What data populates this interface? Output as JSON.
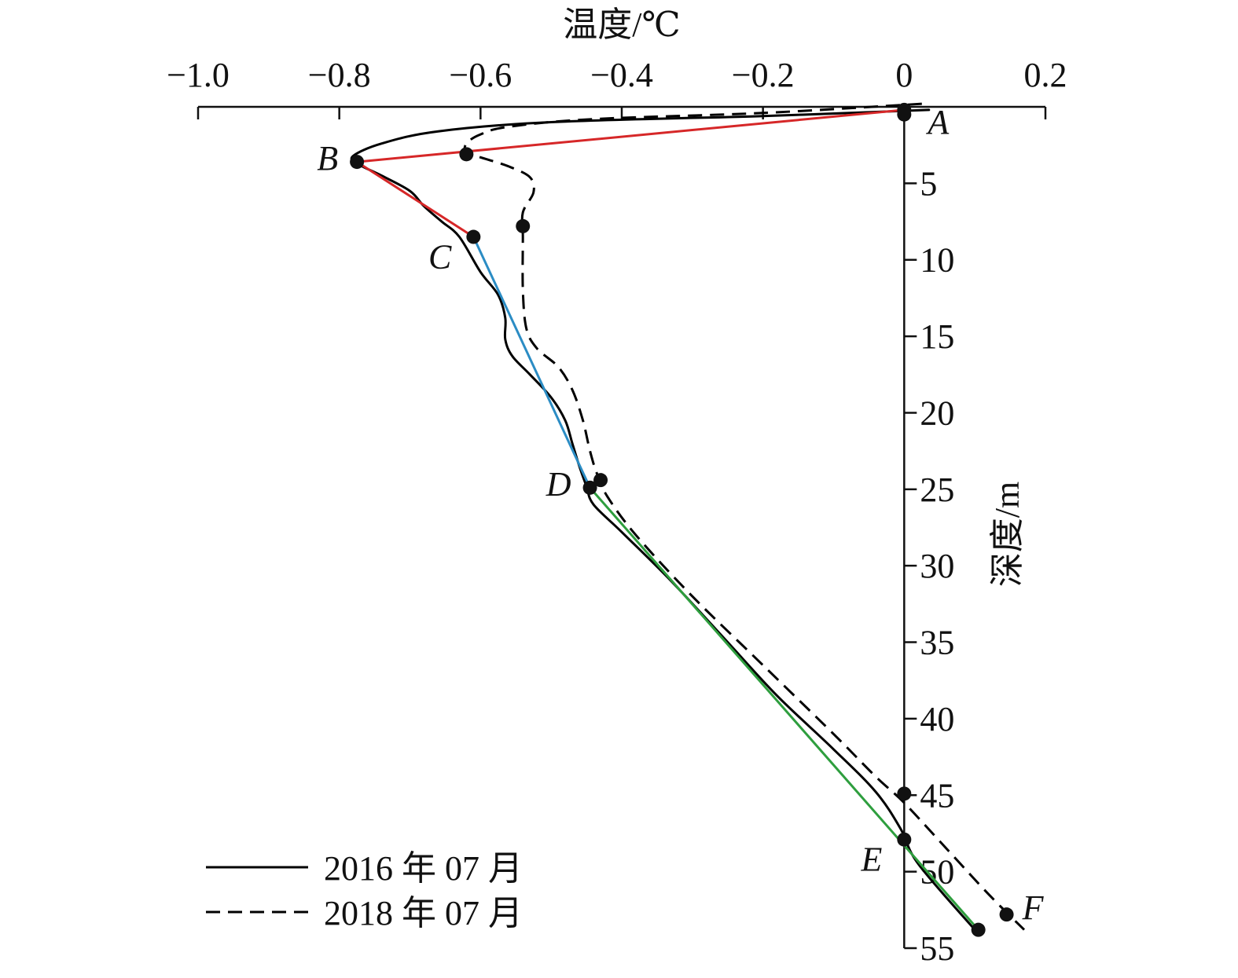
{
  "chart_data": {
    "type": "line",
    "xlabel": "温度/℃",
    "ylabel": "深度/m",
    "xlim": [
      -1.0,
      0.2
    ],
    "ylim": [
      0,
      55
    ],
    "x_axis_position": "top",
    "y_axis_at_x": 0,
    "y_inverted": true,
    "grid": false,
    "legend_placement": "bottom-left",
    "x_ticks": [
      -1.0,
      -0.8,
      -0.6,
      -0.4,
      -0.2,
      0,
      0.2
    ],
    "x_tick_labels": [
      "−1.0",
      "−0.8",
      "−0.6",
      "−0.4",
      "−0.2",
      "0",
      "0.2"
    ],
    "y_ticks": [
      5,
      10,
      15,
      20,
      25,
      30,
      35,
      40,
      45,
      50,
      55
    ],
    "y_tick_labels": [
      "5",
      "10",
      "15",
      "20",
      "25",
      "30",
      "35",
      "40",
      "45",
      "50",
      "55"
    ],
    "series": [
      {
        "name": "2016 年 07 月",
        "style": "solid",
        "color": "#000000",
        "points": [
          [
            0.035,
            0.2
          ],
          [
            -0.2,
            0.6
          ],
          [
            -0.5,
            1.0
          ],
          [
            -0.66,
            1.6
          ],
          [
            -0.74,
            2.4
          ],
          [
            -0.78,
            3.2
          ],
          [
            -0.775,
            3.7
          ],
          [
            -0.74,
            4.5
          ],
          [
            -0.7,
            5.5
          ],
          [
            -0.68,
            6.5
          ],
          [
            -0.655,
            7.5
          ],
          [
            -0.63,
            8.5
          ],
          [
            -0.6,
            10.8
          ],
          [
            -0.575,
            12.3
          ],
          [
            -0.565,
            13.8
          ],
          [
            -0.565,
            15.2
          ],
          [
            -0.555,
            16.3
          ],
          [
            -0.53,
            17.5
          ],
          [
            -0.5,
            19.0
          ],
          [
            -0.48,
            20.5
          ],
          [
            -0.47,
            22.0
          ],
          [
            -0.46,
            23.5
          ],
          [
            -0.45,
            24.8
          ],
          [
            -0.44,
            26.0
          ],
          [
            -0.4,
            27.8
          ],
          [
            -0.33,
            31.0
          ],
          [
            -0.25,
            35.0
          ],
          [
            -0.18,
            38.5
          ],
          [
            -0.1,
            42.0
          ],
          [
            -0.04,
            44.8
          ],
          [
            -0.005,
            47.2
          ],
          [
            0.02,
            49.5
          ],
          [
            0.1,
            53.8
          ]
        ]
      },
      {
        "name": "2018 年 07 月",
        "style": "dashed",
        "color": "#000000",
        "points": [
          [
            0.025,
            -0.2
          ],
          [
            -0.2,
            0.4
          ],
          [
            -0.44,
            0.8
          ],
          [
            -0.56,
            1.3
          ],
          [
            -0.6,
            1.8
          ],
          [
            -0.62,
            2.4
          ],
          [
            -0.62,
            3.0
          ],
          [
            -0.6,
            3.3
          ],
          [
            -0.56,
            3.9
          ],
          [
            -0.53,
            4.6
          ],
          [
            -0.525,
            5.6
          ],
          [
            -0.54,
            6.9
          ],
          [
            -0.54,
            8.5
          ],
          [
            -0.54,
            12.0
          ],
          [
            -0.535,
            14.5
          ],
          [
            -0.52,
            15.8
          ],
          [
            -0.49,
            17.0
          ],
          [
            -0.47,
            18.5
          ],
          [
            -0.455,
            20.5
          ],
          [
            -0.445,
            22.5
          ],
          [
            -0.435,
            24.0
          ],
          [
            -0.42,
            25.5
          ],
          [
            -0.38,
            28.0
          ],
          [
            -0.3,
            32.0
          ],
          [
            -0.2,
            36.5
          ],
          [
            -0.1,
            41.0
          ],
          [
            -0.04,
            43.8
          ],
          [
            0.0,
            45.5
          ],
          [
            0.06,
            48.5
          ],
          [
            0.12,
            51.5
          ],
          [
            0.17,
            53.8
          ]
        ]
      }
    ],
    "segments": [
      {
        "from": "A",
        "to": "B",
        "color": "#d62728"
      },
      {
        "from": "B",
        "to": "C",
        "color": "#d62728"
      },
      {
        "from": "C",
        "to": "D",
        "color": "#2b8cc4"
      },
      {
        "from": "D",
        "to": "F1",
        "color": "#2e9e3e"
      }
    ],
    "markers": [
      {
        "id": "A",
        "x": 0.0,
        "y": 0.2
      },
      {
        "id": "A2",
        "x": 0.0,
        "y": 0.5
      },
      {
        "id": "B",
        "x": -0.775,
        "y": 3.6
      },
      {
        "id": "B2018",
        "x": -0.62,
        "y": 3.1
      },
      {
        "id": "M2018",
        "x": -0.54,
        "y": 7.8
      },
      {
        "id": "C",
        "x": -0.61,
        "y": 8.5
      },
      {
        "id": "D",
        "x": -0.445,
        "y": 24.9
      },
      {
        "id": "D2018",
        "x": -0.43,
        "y": 24.4
      },
      {
        "id": "E45",
        "x": 0.0,
        "y": 44.9
      },
      {
        "id": "E",
        "x": 0.0,
        "y": 47.9
      },
      {
        "id": "F",
        "x": 0.145,
        "y": 52.8
      },
      {
        "id": "F1",
        "x": 0.105,
        "y": 53.8
      }
    ],
    "point_labels": [
      {
        "text": "A",
        "at": "A",
        "side": "right-below"
      },
      {
        "text": "B",
        "at": "B",
        "side": "left"
      },
      {
        "text": "C",
        "at": "C",
        "side": "left-below"
      },
      {
        "text": "D",
        "at": "D",
        "side": "left"
      },
      {
        "text": "E",
        "at": "E",
        "side": "left-below"
      },
      {
        "text": "F",
        "at": "F",
        "side": "right"
      }
    ]
  }
}
